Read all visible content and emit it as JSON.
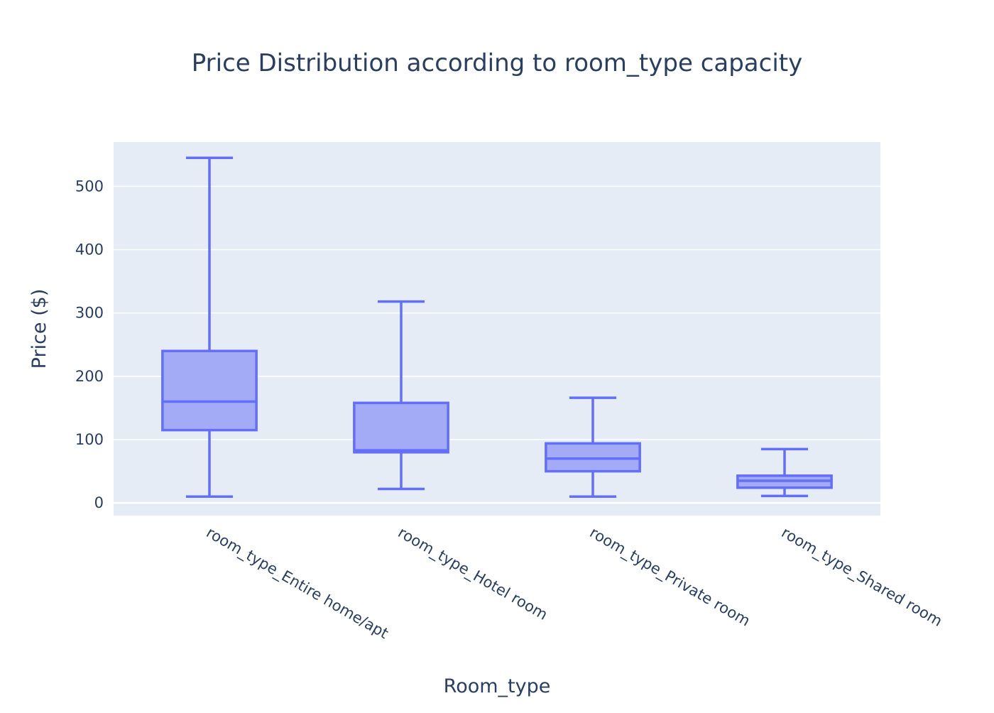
{
  "chart_data": {
    "type": "box",
    "title": "Price Distribution according to room_type capacity",
    "xlabel": "Room_type",
    "ylabel": "Price ($)",
    "ylim": [
      -20,
      570
    ],
    "y_ticks": [
      0,
      100,
      200,
      300,
      400,
      500
    ],
    "grid": true,
    "categories": [
      "room_type_Entire home/apt",
      "room_type_Hotel room",
      "room_type_Private room",
      "room_type_Shared room"
    ],
    "boxes": [
      {
        "category": "room_type_Entire home/apt",
        "min": 10,
        "q1": 115,
        "median": 160,
        "q3": 240,
        "max": 545
      },
      {
        "category": "room_type_Hotel room",
        "min": 22,
        "q1": 80,
        "median": 83,
        "q3": 158,
        "max": 318
      },
      {
        "category": "room_type_Private room",
        "min": 10,
        "q1": 50,
        "median": 70,
        "q3": 94,
        "max": 166
      },
      {
        "category": "room_type_Shared room",
        "min": 11,
        "q1": 24,
        "median": 35,
        "q3": 43,
        "max": 85
      }
    ],
    "colors": {
      "box_line": "#636efa",
      "box_fill": "#a3aaf6",
      "plot_bg": "#e5ecf6",
      "grid": "#ffffff",
      "text": "#2a3f5f"
    }
  }
}
